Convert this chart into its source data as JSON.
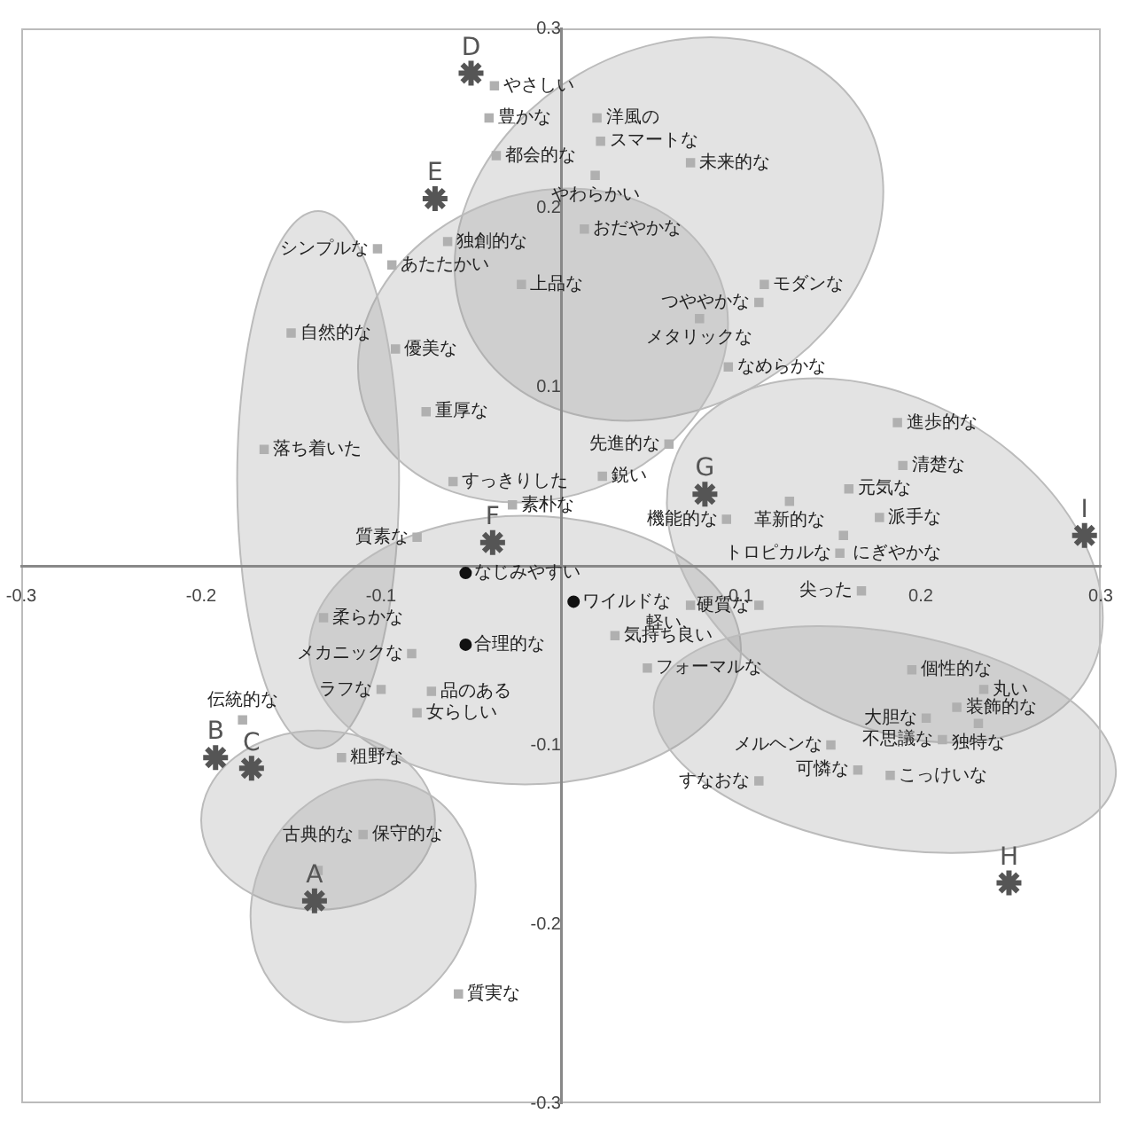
{
  "chart_data": {
    "type": "scatter",
    "xlim": [
      -0.3,
      0.3
    ],
    "ylim": [
      -0.3,
      0.3
    ],
    "xticks": [
      -0.3,
      -0.2,
      -0.1,
      0.1,
      0.2,
      0.3
    ],
    "yticks": [
      -0.3,
      -0.2,
      -0.1,
      0.1,
      0.2,
      0.3
    ],
    "grid": false,
    "legend": false,
    "series": [
      {
        "color": "#555555",
        "marker": "cross",
        "x": [
          -0.137,
          -0.192,
          -0.172,
          -0.05,
          -0.07,
          -0.038,
          0.08,
          0.249,
          0.291
        ],
        "values": [
          -0.187,
          -0.107,
          -0.113,
          0.275,
          0.205,
          0.013,
          0.04,
          -0.177,
          0.017
        ],
        "value_labels": [
          "A",
          "B",
          "C",
          "D",
          "E",
          "F",
          "G",
          "H",
          "I"
        ]
      },
      {
        "color": "#111111",
        "marker": "circle",
        "x": [
          -0.053,
          0.007,
          -0.053
        ],
        "values": [
          -0.004,
          -0.02,
          -0.044
        ],
        "value_labels": [
          "なじみやすい",
          "ワイルドな",
          "合理的な"
        ]
      },
      {
        "color": "#b0b0b0",
        "marker": "square",
        "x": [
          -0.037,
          -0.04,
          -0.036,
          0.02,
          0.022,
          0.072,
          0.019,
          0.013,
          -0.022,
          0.113,
          0.11,
          0.077,
          0.093,
          -0.102,
          -0.063,
          -0.094,
          -0.15,
          -0.092,
          -0.075,
          -0.165,
          -0.06,
          -0.027,
          -0.08,
          0.06,
          0.023,
          0.187,
          0.19,
          0.16,
          0.127,
          0.092,
          0.177,
          0.157,
          0.155,
          0.167,
          0.11,
          0.072,
          0.03,
          0.048,
          -0.132,
          -0.083,
          -0.1,
          -0.072,
          -0.08,
          -0.177,
          -0.135,
          -0.122,
          -0.11,
          -0.057,
          0.195,
          0.235,
          0.22,
          0.232,
          0.203,
          0.212,
          0.15,
          0.183,
          0.165,
          0.11
        ],
        "values": [
          0.268,
          0.25,
          0.229,
          0.25,
          0.237,
          0.225,
          0.218,
          0.188,
          0.157,
          0.157,
          0.147,
          0.138,
          0.111,
          0.177,
          0.181,
          0.168,
          0.13,
          0.121,
          0.086,
          0.065,
          0.047,
          0.034,
          0.016,
          0.068,
          0.05,
          0.08,
          0.056,
          0.043,
          0.036,
          0.026,
          0.027,
          0.017,
          0.007,
          -0.014,
          -0.022,
          -0.022,
          -0.039,
          -0.057,
          -0.029,
          -0.049,
          -0.069,
          -0.07,
          -0.082,
          -0.086,
          -0.17,
          -0.107,
          -0.15,
          -0.239,
          -0.058,
          -0.069,
          -0.079,
          -0.088,
          -0.085,
          -0.097,
          -0.1,
          -0.117,
          -0.114,
          -0.12
        ],
        "value_labels": [
          "やさしい",
          "豊かな",
          "都会的な",
          "洋風の",
          "スマートな",
          "未来的な",
          "やわらかい",
          "おだやかな",
          "上品な",
          "モダンな",
          "つややかな",
          "メタリックな",
          "なめらかな",
          "シンプルな",
          "独創的な",
          "あたたかい",
          "自然的な",
          "優美な",
          "重厚な",
          "落ち着いた",
          "すっきりした",
          "素朴な",
          "質素な",
          "先進的な",
          "鋭い",
          "進歩的な",
          "清楚な",
          "元気な",
          "革新的な",
          "機能的な",
          "派手な",
          "にぎやかな",
          "トロピカルな",
          "尖った",
          "硬質な",
          "軽い",
          "気持ち良い",
          "フォーマルな",
          "柔らかな",
          "メカニックな",
          "ラフな",
          "品のある",
          "女らしい",
          "伝統的な",
          "古典的な",
          "粗野な",
          "保守的な",
          "質実な",
          "個性的な",
          "丸い",
          "装飾的な",
          "独特な",
          "大胆な",
          "不思議な",
          "メルヘンな",
          "こっけいな",
          "可憐な",
          "すなおな"
        ]
      }
    ]
  }
}
